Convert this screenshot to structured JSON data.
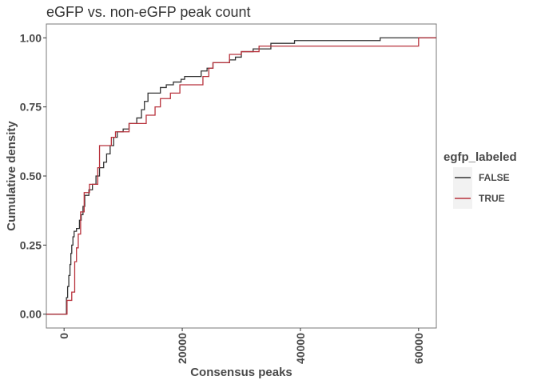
{
  "chart_data": {
    "type": "line",
    "step": true,
    "title": "eGFP vs. non-eGFP peak count",
    "xlabel": "Consensus peaks",
    "ylabel": "Cumulative density",
    "xlim": [
      -3000,
      63000
    ],
    "ylim": [
      -0.05,
      1.05
    ],
    "xticks": [
      0,
      20000,
      40000,
      60000
    ],
    "xtick_labels": [
      "0",
      "20000",
      "40000",
      "60000"
    ],
    "yticks": [
      0,
      0.25,
      0.5,
      0.75,
      1
    ],
    "ytick_labels": [
      "0.00",
      "0.25",
      "0.50",
      "0.75",
      "1.00"
    ],
    "grid": false,
    "legend": {
      "title": "egfp_labeled",
      "position": "right"
    },
    "series": [
      {
        "name": "FALSE",
        "color": "#333333",
        "points": [
          [
            -3000,
            0
          ],
          [
            400,
            0
          ],
          [
            400,
            0.06
          ],
          [
            600,
            0.06
          ],
          [
            600,
            0.1
          ],
          [
            800,
            0.1
          ],
          [
            800,
            0.14
          ],
          [
            1000,
            0.14
          ],
          [
            1000,
            0.18
          ],
          [
            1150,
            0.18
          ],
          [
            1150,
            0.22
          ],
          [
            1300,
            0.22
          ],
          [
            1300,
            0.25
          ],
          [
            1500,
            0.25
          ],
          [
            1500,
            0.28
          ],
          [
            1700,
            0.28
          ],
          [
            1700,
            0.3
          ],
          [
            2100,
            0.3
          ],
          [
            2100,
            0.31
          ],
          [
            2600,
            0.31
          ],
          [
            2600,
            0.34
          ],
          [
            2900,
            0.34
          ],
          [
            2900,
            0.36
          ],
          [
            3200,
            0.36
          ],
          [
            3200,
            0.39
          ],
          [
            3500,
            0.39
          ],
          [
            3500,
            0.43
          ],
          [
            4200,
            0.43
          ],
          [
            4200,
            0.45
          ],
          [
            4800,
            0.45
          ],
          [
            4800,
            0.47
          ],
          [
            5400,
            0.47
          ],
          [
            5400,
            0.5
          ],
          [
            6000,
            0.5
          ],
          [
            6000,
            0.53
          ],
          [
            6700,
            0.53
          ],
          [
            6700,
            0.55
          ],
          [
            7200,
            0.55
          ],
          [
            7200,
            0.58
          ],
          [
            7800,
            0.58
          ],
          [
            7800,
            0.61
          ],
          [
            8400,
            0.61
          ],
          [
            8400,
            0.64
          ],
          [
            9000,
            0.64
          ],
          [
            9000,
            0.66
          ],
          [
            10000,
            0.66
          ],
          [
            10000,
            0.67
          ],
          [
            11000,
            0.67
          ],
          [
            11000,
            0.69
          ],
          [
            12300,
            0.69
          ],
          [
            12300,
            0.71
          ],
          [
            13100,
            0.71
          ],
          [
            13100,
            0.74
          ],
          [
            13600,
            0.74
          ],
          [
            13600,
            0.77
          ],
          [
            14200,
            0.77
          ],
          [
            14200,
            0.8
          ],
          [
            16300,
            0.8
          ],
          [
            16300,
            0.82
          ],
          [
            17300,
            0.82
          ],
          [
            17300,
            0.83
          ],
          [
            18500,
            0.83
          ],
          [
            18500,
            0.84
          ],
          [
            19800,
            0.84
          ],
          [
            19800,
            0.85
          ],
          [
            20400,
            0.85
          ],
          [
            20400,
            0.86
          ],
          [
            23200,
            0.86
          ],
          [
            23200,
            0.88
          ],
          [
            24200,
            0.88
          ],
          [
            24200,
            0.89
          ],
          [
            25200,
            0.89
          ],
          [
            25200,
            0.91
          ],
          [
            28000,
            0.91
          ],
          [
            28000,
            0.92
          ],
          [
            29000,
            0.92
          ],
          [
            29000,
            0.93
          ],
          [
            30000,
            0.93
          ],
          [
            30000,
            0.95
          ],
          [
            32000,
            0.95
          ],
          [
            32000,
            0.96
          ],
          [
            35000,
            0.96
          ],
          [
            35000,
            0.98
          ],
          [
            39000,
            0.98
          ],
          [
            39000,
            0.99
          ],
          [
            53500,
            0.99
          ],
          [
            53500,
            1.0
          ],
          [
            63000,
            1.0
          ]
        ]
      },
      {
        "name": "TRUE",
        "color": "#b8323c",
        "points": [
          [
            -3000,
            0
          ],
          [
            500,
            0
          ],
          [
            500,
            0.05
          ],
          [
            1300,
            0.05
          ],
          [
            1300,
            0.08
          ],
          [
            1800,
            0.08
          ],
          [
            1800,
            0.19
          ],
          [
            2100,
            0.19
          ],
          [
            2100,
            0.24
          ],
          [
            2400,
            0.24
          ],
          [
            2400,
            0.29
          ],
          [
            2800,
            0.29
          ],
          [
            2800,
            0.37
          ],
          [
            3400,
            0.37
          ],
          [
            3400,
            0.44
          ],
          [
            4300,
            0.44
          ],
          [
            4300,
            0.47
          ],
          [
            5700,
            0.47
          ],
          [
            5700,
            0.53
          ],
          [
            6000,
            0.53
          ],
          [
            6000,
            0.61
          ],
          [
            8000,
            0.61
          ],
          [
            8000,
            0.64
          ],
          [
            8700,
            0.64
          ],
          [
            8700,
            0.66
          ],
          [
            11000,
            0.66
          ],
          [
            11000,
            0.69
          ],
          [
            13900,
            0.69
          ],
          [
            13900,
            0.72
          ],
          [
            15400,
            0.72
          ],
          [
            15400,
            0.75
          ],
          [
            16300,
            0.75
          ],
          [
            16300,
            0.78
          ],
          [
            18000,
            0.78
          ],
          [
            18000,
            0.8
          ],
          [
            19600,
            0.8
          ],
          [
            19600,
            0.83
          ],
          [
            23500,
            0.83
          ],
          [
            23500,
            0.86
          ],
          [
            24500,
            0.86
          ],
          [
            24500,
            0.89
          ],
          [
            25200,
            0.89
          ],
          [
            25200,
            0.91
          ],
          [
            28000,
            0.91
          ],
          [
            28000,
            0.94
          ],
          [
            30000,
            0.94
          ],
          [
            30000,
            0.95
          ],
          [
            33000,
            0.95
          ],
          [
            33000,
            0.97
          ],
          [
            60000,
            0.97
          ],
          [
            60000,
            1.0
          ],
          [
            63000,
            1.0
          ]
        ]
      }
    ]
  }
}
